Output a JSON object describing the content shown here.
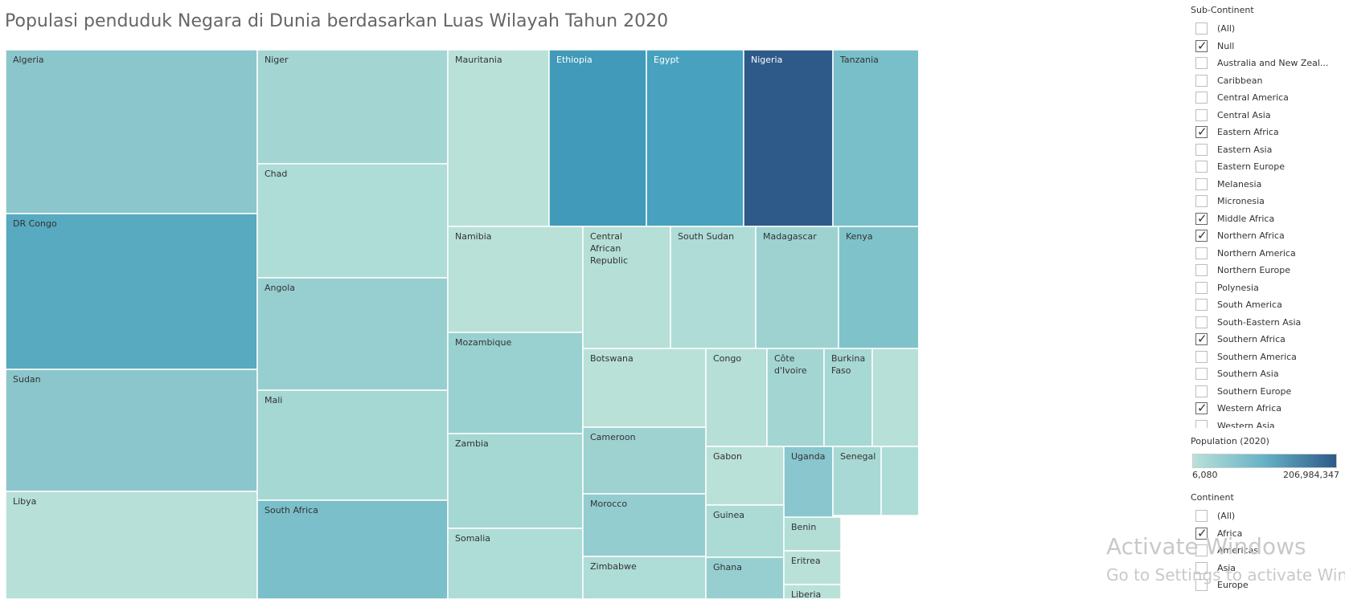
{
  "title": "Populasi penduduk Negara di Dunia berdasarkan Luas Wilayah Tahun 2020",
  "chart_data": {
    "type": "treemap",
    "measure_size": "",
    "measure_color": "Population (2020)",
    "color_range": [
      6080,
      206984347
    ],
    "colors": {
      "low": "#b9e1d8",
      "mid": "#66b1c6",
      "high": "#2d5a8a"
    },
    "tiles": [
      {
        "label": "Algeria",
        "color": "#8bc6cc"
      },
      {
        "label": "DR Congo",
        "color": "#57aac0"
      },
      {
        "label": "Sudan",
        "color": "#8bc6cc"
      },
      {
        "label": "Libya",
        "color": "#b7e0d8"
      },
      {
        "label": "Niger",
        "color": "#a3d6d3"
      },
      {
        "label": "Chad",
        "color": "#aedcd6"
      },
      {
        "label": "Angola",
        "color": "#97cfd0"
      },
      {
        "label": "Mali",
        "color": "#a5d7d3"
      },
      {
        "label": "South Africa",
        "color": "#7abfc9"
      },
      {
        "label": "Mauritania",
        "color": "#b9e1d8"
      },
      {
        "label": "Ethiopia",
        "color": "#419ab9"
      },
      {
        "label": "Egypt",
        "color": "#48a2bf"
      },
      {
        "label": "Nigeria",
        "color": "#2e5a89"
      },
      {
        "label": "Tanzania",
        "color": "#79bfc9"
      },
      {
        "label": "Namibia",
        "color": "#b9e1d8"
      },
      {
        "label": "Mozambique",
        "color": "#99d0d0"
      },
      {
        "label": "Zambia",
        "color": "#a5d7d3"
      },
      {
        "label": "Somalia",
        "color": "#aedcd6"
      },
      {
        "label": "Central African Republic",
        "color": "#b5dfd7"
      },
      {
        "label": "South Sudan",
        "color": "#afdcd6"
      },
      {
        "label": "Madagascar",
        "color": "#9dd2d1"
      },
      {
        "label": "Kenya",
        "color": "#80c2ca"
      },
      {
        "label": "Botswana",
        "color": "#b9e1d8"
      },
      {
        "label": "Congo",
        "color": "#b5dfd7"
      },
      {
        "label": "Côte d'Ivoire",
        "color": "#a3d6d3"
      },
      {
        "label": "Burkina Faso",
        "color": "#a6d8d4"
      },
      {
        "label": "",
        "color": "#b7e0d8"
      },
      {
        "label": "Cameroon",
        "color": "#9dd2d1"
      },
      {
        "label": "Morocco",
        "color": "#94cdcf"
      },
      {
        "label": "Zimbabwe",
        "color": "#aedcd6"
      },
      {
        "label": "Gabon",
        "color": "#b9e1d8"
      },
      {
        "label": "Uganda",
        "color": "#89c6cd"
      },
      {
        "label": "Senegal",
        "color": "#a9d9d4"
      },
      {
        "label": "",
        "color": "#aedcd6"
      },
      {
        "label": "Guinea",
        "color": "#acdad5"
      },
      {
        "label": "Ghana",
        "color": "#97cfd0"
      },
      {
        "label": "Benin",
        "color": "#b2ded6"
      },
      {
        "label": "Eritrea",
        "color": "#b9e1d8"
      },
      {
        "label": "Liberia",
        "color": "#b9e1d8"
      }
    ]
  },
  "filters": {
    "subcontinent": {
      "title": "Sub-Continent",
      "items": [
        {
          "label": "(All)",
          "checked": false
        },
        {
          "label": "Null",
          "checked": true
        },
        {
          "label": "Australia and New Zeal...",
          "checked": false
        },
        {
          "label": "Caribbean",
          "checked": false
        },
        {
          "label": "Central America",
          "checked": false
        },
        {
          "label": "Central Asia",
          "checked": false
        },
        {
          "label": "Eastern Africa",
          "checked": true
        },
        {
          "label": "Eastern Asia",
          "checked": false
        },
        {
          "label": "Eastern Europe",
          "checked": false
        },
        {
          "label": "Melanesia",
          "checked": false
        },
        {
          "label": "Micronesia",
          "checked": false
        },
        {
          "label": "Middle Africa",
          "checked": true
        },
        {
          "label": "Northern Africa",
          "checked": true
        },
        {
          "label": "Northern America",
          "checked": false
        },
        {
          "label": "Northern Europe",
          "checked": false
        },
        {
          "label": "Polynesia",
          "checked": false
        },
        {
          "label": "South America",
          "checked": false
        },
        {
          "label": "South-Eastern Asia",
          "checked": false
        },
        {
          "label": "Southern Africa",
          "checked": true
        },
        {
          "label": "Southern America",
          "checked": false
        },
        {
          "label": "Southern Asia",
          "checked": false
        },
        {
          "label": "Southern Europe",
          "checked": false
        },
        {
          "label": "Western Africa",
          "checked": true
        },
        {
          "label": "Western Asia",
          "checked": false
        }
      ]
    },
    "continent": {
      "title": "Continent",
      "items": [
        {
          "label": "(All)",
          "checked": false
        },
        {
          "label": "Africa",
          "checked": true
        },
        {
          "label": "Americas",
          "checked": false
        },
        {
          "label": "Asia",
          "checked": false
        },
        {
          "label": "Europe",
          "checked": false
        }
      ]
    }
  },
  "legend": {
    "title": "Population (2020)",
    "min_label": "6,080",
    "max_label": "206,984,347"
  },
  "watermark": {
    "line1": "Activate Windows",
    "line2": "Go to Settings to activate Windows."
  }
}
